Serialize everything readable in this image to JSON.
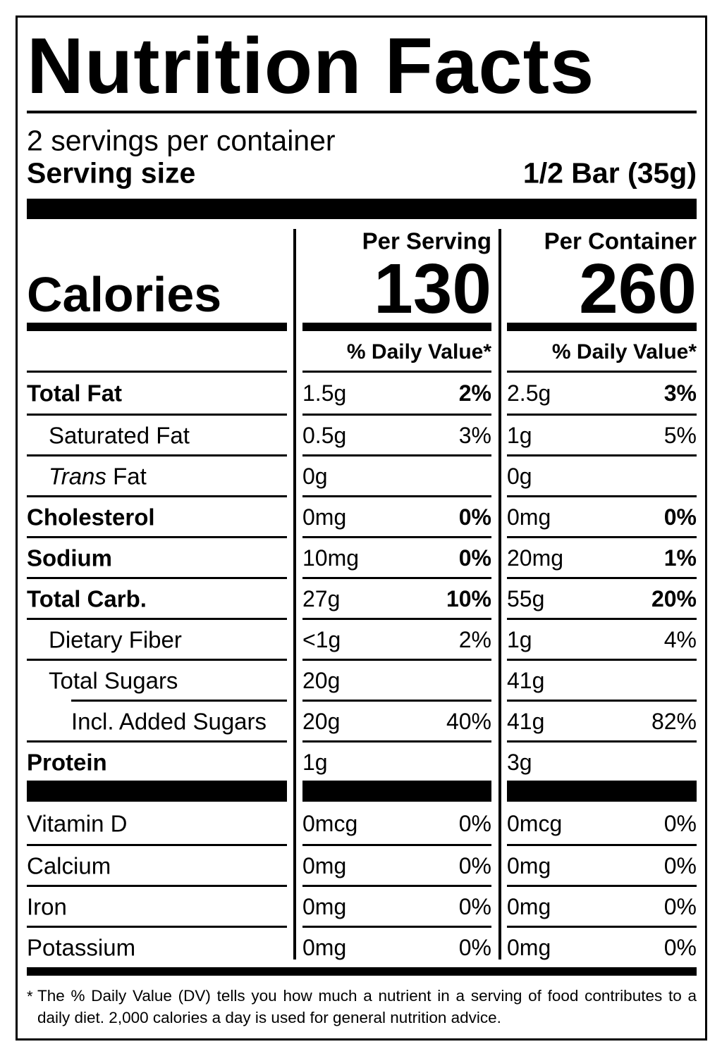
{
  "title": "Nutrition Facts",
  "servings": "2 servings per container",
  "serving_size": {
    "label": "Serving size",
    "value": "1/2 Bar (35g)"
  },
  "calories_label": "Calories",
  "columns": [
    {
      "heading": "Per Serving",
      "calories": 130,
      "dv_heading": "% Daily Value*"
    },
    {
      "heading": "Per Container",
      "calories": 260,
      "dv_heading": "% Daily Value*"
    }
  ],
  "nutrients": [
    {
      "name": "Total Fat",
      "bold": true,
      "indent": 0,
      "values": [
        [
          "1.5g",
          "2%"
        ],
        [
          "2.5g",
          "3%"
        ]
      ]
    },
    {
      "name": "Saturated Fat",
      "bold": false,
      "indent": 1,
      "values": [
        [
          "0.5g",
          "3%"
        ],
        [
          "1g",
          "5%"
        ]
      ]
    },
    {
      "name_italic": "Trans",
      "name": "Fat",
      "bold": false,
      "indent": 1,
      "values": [
        [
          "0g",
          null
        ],
        [
          "0g",
          null
        ]
      ]
    },
    {
      "name": "Cholesterol",
      "bold": true,
      "indent": 0,
      "values": [
        [
          "0mg",
          "0%"
        ],
        [
          "0mg",
          "0%"
        ]
      ]
    },
    {
      "name": "Sodium",
      "bold": true,
      "indent": 0,
      "values": [
        [
          "10mg",
          "0%"
        ],
        [
          "20mg",
          "1%"
        ]
      ]
    },
    {
      "name": "Total Carb.",
      "bold": true,
      "indent": 0,
      "values": [
        [
          "27g",
          "10%"
        ],
        [
          "55g",
          "20%"
        ]
      ]
    },
    {
      "name": "Dietary Fiber",
      "bold": false,
      "indent": 1,
      "values": [
        [
          "<1g",
          "2%"
        ],
        [
          "1g",
          "4%"
        ]
      ]
    },
    {
      "name": "Total Sugars",
      "bold": false,
      "indent": 1,
      "values": [
        [
          "20g",
          null
        ],
        [
          "41g",
          null
        ]
      ]
    },
    {
      "name": "Incl. Added Sugars",
      "bold": false,
      "indent": 2,
      "values": [
        [
          "20g",
          "40%"
        ],
        [
          "41g",
          "82%"
        ]
      ]
    },
    {
      "name": "Protein",
      "bold": true,
      "indent": 0,
      "values": [
        [
          "1g",
          null
        ],
        [
          "3g",
          null
        ]
      ]
    }
  ],
  "vitamins": [
    {
      "name": "Vitamin D",
      "values": [
        [
          "0mcg",
          "0%"
        ],
        [
          "0mcg",
          "0%"
        ]
      ]
    },
    {
      "name": "Calcium",
      "values": [
        [
          "0mg",
          "0%"
        ],
        [
          "0mg",
          "0%"
        ]
      ]
    },
    {
      "name": "Iron",
      "values": [
        [
          "0mg",
          "0%"
        ],
        [
          "0mg",
          "0%"
        ]
      ]
    },
    {
      "name": "Potassium",
      "values": [
        [
          "0mg",
          "0%"
        ],
        [
          "0mg",
          "0%"
        ]
      ]
    }
  ],
  "footnote": {
    "mark": "*",
    "text": "The % Daily Value (DV) tells you how much a nutrient in a serving of food contributes to a daily diet. 2,000 calories a day is used for general nutrition advice."
  }
}
